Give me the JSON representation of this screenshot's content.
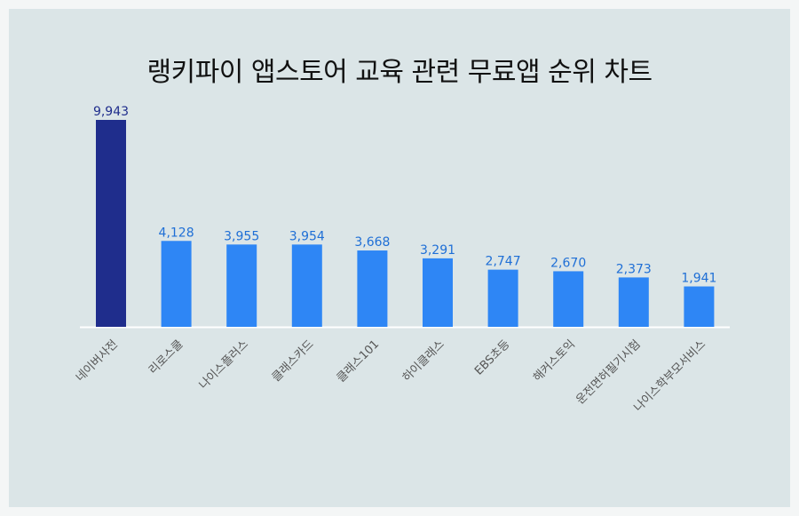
{
  "chart_data": {
    "type": "bar",
    "title": "랭키파이 앱스토어 교육 관련 무료앱 순위 차트",
    "categories": [
      "네이버사전",
      "리로스쿨",
      "나이스플러스",
      "클래스카드",
      "클래스101",
      "하이클래스",
      "EBS초등",
      "해커스토익",
      "운전면허필기시험",
      "나이스학부모서비스"
    ],
    "values": [
      9943,
      4128,
      3955,
      3954,
      3668,
      3291,
      2747,
      2670,
      2373,
      1941
    ],
    "value_labels": [
      "9,943",
      "4,128",
      "3,955",
      "3,954",
      "3,668",
      "3,291",
      "2,747",
      "2,670",
      "2,373",
      "1,941"
    ],
    "colors": {
      "highlight": "#1f2d8c",
      "bar": "#2e86f5",
      "highlight_label": "#1f2d8c",
      "label": "#1f6fd6",
      "axis": "#ffffff",
      "tick_label": "#555555"
    },
    "ylim": [
      0,
      9943
    ],
    "grid": false,
    "legend": "none"
  }
}
